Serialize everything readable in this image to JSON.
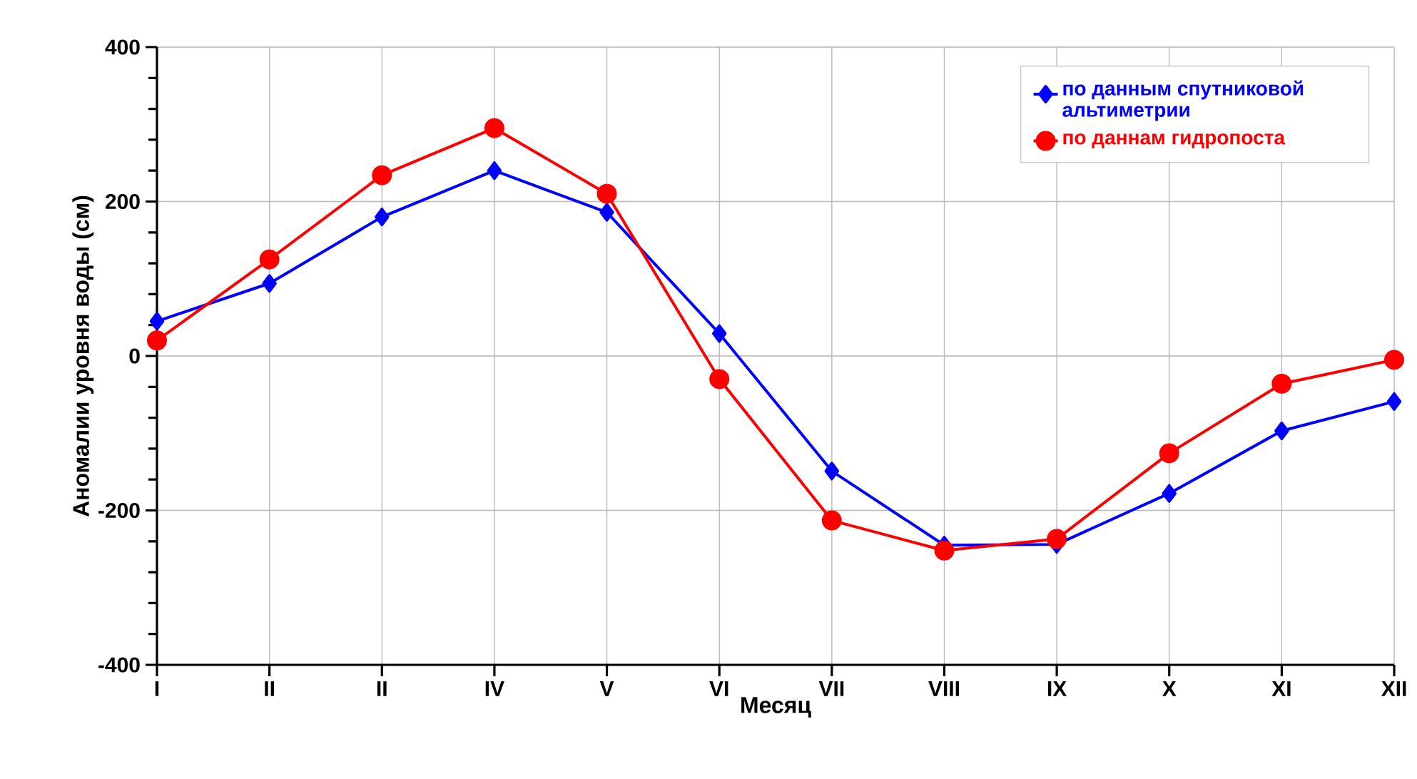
{
  "chart_data": {
    "type": "line",
    "xlabel": "Месяц",
    "ylabel": "Аномалии уровня воды (см)",
    "categories": [
      "I",
      "II",
      "II",
      "IV",
      "V",
      "VI",
      "VII",
      "VIII",
      "IX",
      "X",
      "XI",
      "XII"
    ],
    "series": [
      {
        "name": "по данным спутниковой альтиметрии",
        "color": "#0000ff",
        "marker": "diamond",
        "values": [
          45,
          94,
          180,
          240,
          186,
          29,
          -149,
          -245,
          -244,
          -178,
          -97,
          -59
        ]
      },
      {
        "name": "по даннам гидропоста",
        "color": "#ff0000",
        "marker": "circle",
        "values": [
          20,
          125,
          234,
          295,
          210,
          -30,
          -213,
          -252,
          -237,
          -126,
          -36,
          -5
        ]
      }
    ],
    "ylim": [
      -400,
      400
    ],
    "yticks": [
      -400,
      -200,
      0,
      200,
      400
    ],
    "grid": true,
    "legend": "top right"
  }
}
